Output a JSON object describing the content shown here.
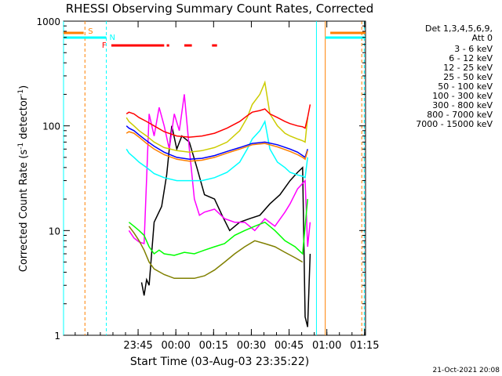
{
  "chart_data": {
    "type": "line",
    "title": "RHESSI Observing Summary Count Rates, Corrected",
    "xlabel": "Start Time (03-Aug-03 23:35:22)",
    "ylabel_main": "Corrected Count Rate (s",
    "ylabel_exp1": "-1",
    "ylabel_mid": " detector",
    "ylabel_exp2": "-1",
    "ylabel_end": ")",
    "timestamp": "21-Oct-2021 20:08",
    "y_scale": "log",
    "ylim": [
      1,
      1000
    ],
    "xlim_minutes": [
      -20,
      100
    ],
    "x_ticks": [
      {
        "m": 9.63,
        "label": "23:45"
      },
      {
        "m": 24.63,
        "label": "00:00"
      },
      {
        "m": 39.63,
        "label": "00:15"
      },
      {
        "m": 54.63,
        "label": "00:30"
      },
      {
        "m": 69.63,
        "label": "00:45"
      },
      {
        "m": 84.63,
        "label": "01:00"
      },
      {
        "m": 99.63,
        "label": "01:15"
      }
    ],
    "y_ticks": [
      {
        "v": 1,
        "label": "1"
      },
      {
        "v": 10,
        "label": "10"
      },
      {
        "v": 100,
        "label": "100"
      },
      {
        "v": 1000,
        "label": "1000"
      }
    ],
    "legend_header": [
      "Det 1,3,4,5,6,9,",
      "Att 0"
    ],
    "series": [
      {
        "name": "3 - 6 keV",
        "color": "#000000",
        "x": [
          11,
          12,
          13,
          14,
          16,
          19,
          21,
          22,
          23,
          25,
          27,
          30,
          33,
          36,
          40,
          43,
          46,
          50,
          54,
          58,
          62,
          66,
          70,
          73,
          75,
          76,
          77,
          78
        ],
        "y": [
          3.2,
          2.4,
          3.4,
          3.0,
          12,
          17,
          34,
          60,
          100,
          60,
          80,
          70,
          40,
          22,
          20,
          14,
          10,
          12,
          13,
          14,
          18,
          22,
          30,
          36,
          40,
          1.5,
          1.2,
          6
        ]
      },
      {
        "name": "6 - 12 keV",
        "color": "#ff00ff",
        "x": [
          6,
          8,
          10,
          12,
          14,
          16,
          18,
          20,
          22,
          24,
          26,
          28,
          30,
          32,
          34,
          36,
          40,
          44,
          48,
          52,
          56,
          60,
          64,
          68,
          70,
          73,
          76,
          77,
          78
        ],
        "y": [
          10,
          8.5,
          7.8,
          7.5,
          130,
          80,
          150,
          100,
          60,
          130,
          90,
          200,
          60,
          20,
          14,
          15,
          16,
          13,
          12,
          12,
          10,
          13,
          11,
          15,
          18,
          25,
          30,
          7,
          12
        ]
      },
      {
        "name": "12 - 25 keV",
        "color": "#00ff00",
        "x": [
          6,
          8,
          10,
          12,
          14,
          16,
          18,
          20,
          24,
          28,
          32,
          36,
          40,
          44,
          48,
          52,
          56,
          60,
          64,
          68,
          72,
          75,
          77
        ],
        "y": [
          12,
          11,
          10,
          9,
          7,
          6,
          6.5,
          6,
          5.8,
          6.2,
          6,
          6.5,
          7,
          7.5,
          9,
          10,
          11,
          12,
          10,
          8,
          7,
          6,
          20
        ]
      },
      {
        "name": "25 - 50 keV",
        "color": "#00ffff",
        "x": [
          5,
          6,
          8,
          10,
          13,
          16,
          20,
          25,
          30,
          35,
          40,
          45,
          50,
          53,
          55,
          58,
          60,
          62,
          65,
          68,
          70,
          73,
          75,
          76,
          77
        ],
        "y": [
          60,
          55,
          50,
          45,
          40,
          35,
          32,
          30,
          30,
          30,
          32,
          36,
          45,
          60,
          75,
          90,
          110,
          60,
          45,
          40,
          36,
          34,
          33,
          32,
          50
        ]
      },
      {
        "name": "50 - 100 keV",
        "color": "#cccc00",
        "x": [
          5,
          6,
          8,
          10,
          13,
          16,
          20,
          25,
          30,
          35,
          40,
          45,
          50,
          53,
          55,
          58,
          60,
          62,
          65,
          68,
          70,
          73,
          75,
          76,
          77
        ],
        "y": [
          120,
          110,
          100,
          90,
          80,
          70,
          62,
          58,
          56,
          58,
          62,
          70,
          90,
          120,
          160,
          200,
          260,
          130,
          100,
          85,
          80,
          75,
          72,
          70,
          120
        ]
      },
      {
        "name": "100 - 300 keV",
        "color": "#ff0000",
        "x": [
          5,
          6,
          8,
          10,
          13,
          16,
          20,
          25,
          30,
          35,
          40,
          45,
          50,
          53,
          55,
          58,
          60,
          62,
          65,
          68,
          70,
          73,
          75,
          76,
          77,
          78
        ],
        "y": [
          130,
          135,
          130,
          120,
          110,
          100,
          88,
          80,
          78,
          80,
          85,
          95,
          110,
          125,
          135,
          140,
          145,
          130,
          120,
          110,
          105,
          100,
          98,
          95,
          120,
          160
        ]
      },
      {
        "name": "300 - 800 keV",
        "color": "#0000ff",
        "x": [
          5,
          6,
          8,
          10,
          13,
          16,
          20,
          25,
          30,
          35,
          40,
          45,
          50,
          55,
          60,
          65,
          70,
          73,
          75,
          76,
          77
        ],
        "y": [
          100,
          95,
          90,
          82,
          72,
          64,
          56,
          50,
          48,
          49,
          52,
          57,
          62,
          68,
          70,
          66,
          60,
          56,
          52,
          50,
          60
        ]
      },
      {
        "name": "800 - 7000 keV",
        "color": "#ff8000",
        "x": [
          5,
          6,
          8,
          10,
          13,
          16,
          20,
          25,
          30,
          35,
          40,
          45,
          50,
          55,
          60,
          65,
          70,
          73,
          75,
          76,
          77
        ],
        "y": [
          85,
          88,
          85,
          78,
          68,
          60,
          53,
          48,
          46,
          47,
          50,
          55,
          60,
          66,
          68,
          63,
          57,
          53,
          50,
          48,
          58
        ]
      },
      {
        "name": "7000 - 15000 keV",
        "color": "#808000",
        "x": [
          6,
          8,
          10,
          12,
          14,
          16,
          20,
          24,
          28,
          32,
          36,
          40,
          44,
          48,
          52,
          56,
          60,
          64,
          68,
          72,
          75
        ],
        "y": [
          11,
          9.5,
          8,
          6.5,
          5,
          4.3,
          3.8,
          3.5,
          3.5,
          3.5,
          3.7,
          4.2,
          5,
          6,
          7,
          8,
          7.5,
          7,
          6.2,
          5.5,
          5
        ]
      }
    ],
    "markers": [
      {
        "label": "S",
        "color": "#ff8000"
      },
      {
        "label": "N",
        "color": "#00ffff"
      },
      {
        "label": "F",
        "color": "#ff0000"
      }
    ],
    "flag_segments": [
      {
        "color": "#ff8000",
        "x": [
          -20,
          -12
        ]
      },
      {
        "color": "#ff8000",
        "x": [
          86,
          100
        ]
      },
      {
        "color": "#00ffff",
        "x": [
          -20,
          -3
        ]
      },
      {
        "color": "#00ffff",
        "x": [
          84,
          100
        ]
      },
      {
        "color": "#ff0000",
        "x": [
          -1,
          20
        ]
      },
      {
        "color": "#ff0000",
        "x": [
          21,
          22
        ]
      },
      {
        "color": "#ff0000",
        "x": [
          28,
          31
        ]
      },
      {
        "color": "#ff0000",
        "x": [
          39,
          41
        ]
      }
    ],
    "vertical_lines": [
      {
        "x": -20,
        "color": "#00ffff",
        "dash": false
      },
      {
        "x": -11.5,
        "color": "#ff8000",
        "dash": true
      },
      {
        "x": -3,
        "color": "#00ffff",
        "dash": true
      },
      {
        "x": 80.5,
        "color": "#00ffff",
        "dash": false
      },
      {
        "x": 84,
        "color": "#ff8000",
        "dash": false
      },
      {
        "x": 98.5,
        "color": "#ff8000",
        "dash": true
      },
      {
        "x": 99.5,
        "color": "#00ffff",
        "dash": true
      }
    ]
  }
}
